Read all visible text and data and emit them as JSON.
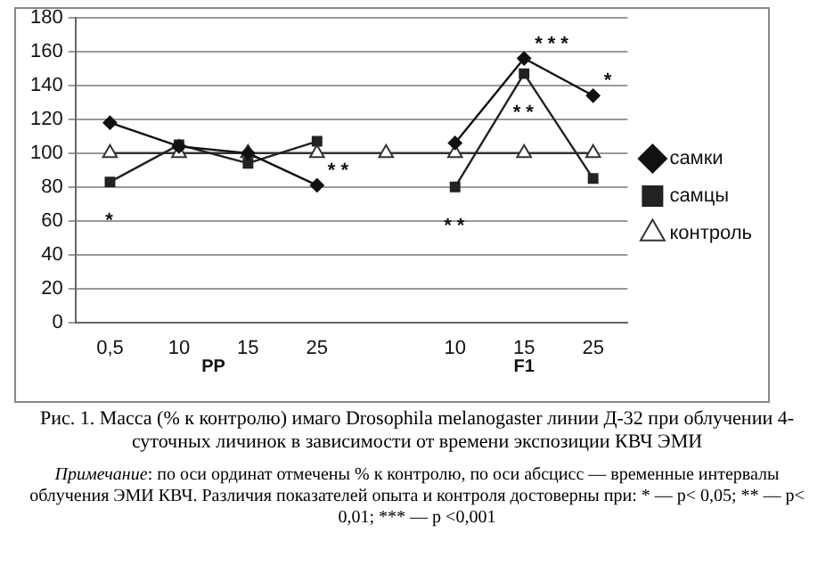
{
  "chart_data": {
    "type": "line",
    "categories": [
      "0,5",
      "10",
      "15",
      "25",
      null,
      "10",
      "15",
      "25"
    ],
    "series": [
      {
        "name": "самки",
        "color": "#111111",
        "marker": "diamond",
        "values": [
          118,
          104,
          100,
          81,
          null,
          106,
          156,
          134
        ],
        "value_labels": [
          null,
          null,
          null,
          "**",
          null,
          null,
          "***",
          "*"
        ]
      },
      {
        "name": "самцы",
        "color": "#222222",
        "marker": "square",
        "values": [
          83,
          105,
          94,
          107,
          null,
          80,
          147,
          85
        ],
        "value_labels": [
          "*",
          null,
          null,
          null,
          null,
          "**",
          "**",
          null
        ]
      },
      {
        "name": "контроль",
        "color": "#333333",
        "marker": "triangle",
        "values": [
          100,
          100,
          100,
          100,
          100,
          100,
          100,
          100
        ]
      }
    ],
    "ylim": [
      0,
      180
    ],
    "yticks": [
      0,
      20,
      40,
      60,
      80,
      100,
      120,
      140,
      160,
      180
    ],
    "grid": "y",
    "legend": "right",
    "line_style": "solid",
    "annotations": [
      "PP",
      "F1",
      "Рис.  1. Масса (% к контролю) имаго Drosophila melanogaster линии Д-32 при облучении 4-суточных личинок в зависимости от времени экспозиции КВЧ ЭМИ",
      "Примечание: по оси ординат отмечены % к контролю, по оси абсцисс — временные интервалы облучения ЭМИ КВЧ. Различия показателей опыта и контроля достоверны при: * — p< 0,05; ** — p< 0,01; *** — p <0,001"
    ]
  }
}
